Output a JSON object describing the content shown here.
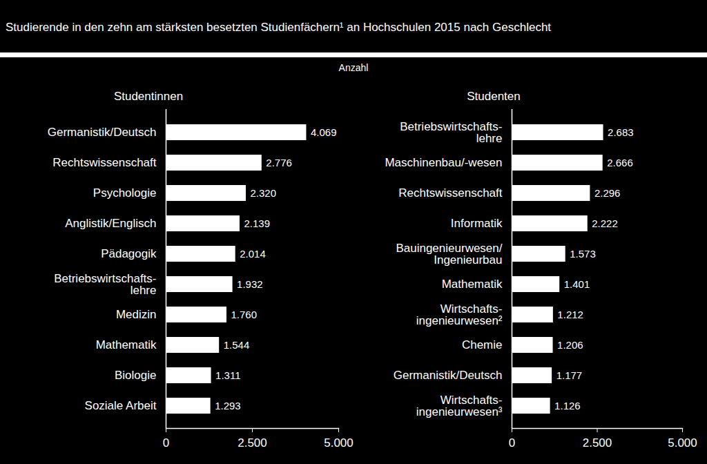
{
  "title": "Studierende in den zehn am stärksten besetzten Studienfächern¹ an Hochschulen 2015 nach Geschlecht",
  "subtitle": "Anzahl",
  "chart_data": [
    {
      "type": "bar",
      "title": "Studentinnen",
      "orientation": "horizontal",
      "categories": [
        "Germanistik/Deutsch",
        "Rechtswissenschaft",
        "Psychologie",
        "Anglistik/Englisch",
        "Pädagogik",
        "Betriebswirtschafts-\nlehre",
        "Medizin",
        "Mathematik",
        "Biologie",
        "Soziale Arbeit"
      ],
      "values": [
        4069,
        2776,
        2320,
        2139,
        2014,
        1932,
        1760,
        1544,
        1311,
        1293
      ],
      "value_labels": [
        "4.069",
        "2.776",
        "2.320",
        "2.139",
        "2.014",
        "1.932",
        "1.760",
        "1.544",
        "1.311",
        "1.293"
      ],
      "color": "#ffffff",
      "data_labels": true,
      "xlim": [
        0,
        5000
      ],
      "xticks": [
        0,
        {
          "value": 2500,
          "label": "2.500"
        },
        {
          "value": 5000,
          "label": "5.000"
        }
      ]
    },
    {
      "type": "bar",
      "title": "Studenten",
      "orientation": "horizontal",
      "categories": [
        "Betriebswirtschafts-\nlehre",
        "Maschinenbau/-wesen",
        "Rechtswissenschaft",
        "Informatik",
        "Bauingenieurwesen/\nIngenieurbau",
        "Mathematik",
        "Wirtschafts-\ningenieurwesen²",
        "Chemie",
        "Germanistik/Deutsch",
        "Wirtschafts-\ningenieurwesen³"
      ],
      "values": [
        2683,
        2666,
        2296,
        2222,
        1573,
        1401,
        1212,
        1206,
        1177,
        1126
      ],
      "value_labels": [
        "2.683",
        "2.666",
        "2.296",
        "2.222",
        "1.573",
        "1.401",
        "1.212",
        "1.206",
        "1.177",
        "1.126"
      ],
      "color": "#ffffff",
      "data_labels": true,
      "xlim": [
        0,
        5000
      ],
      "xticks": [
        0,
        {
          "value": 2500,
          "label": "2.500"
        },
        {
          "value": 5000,
          "label": "5.000"
        }
      ]
    }
  ]
}
